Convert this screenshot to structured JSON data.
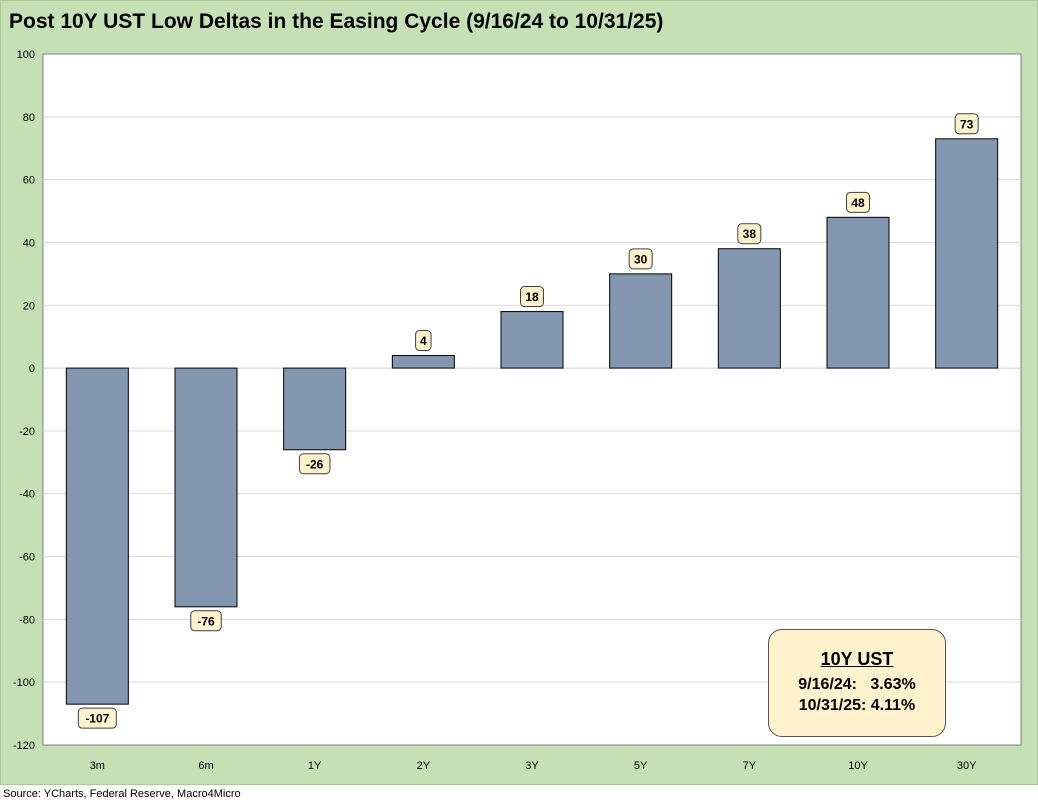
{
  "title": "Post 10Y UST Low Deltas in the Easing Cycle (9/16/24 to 10/31/25)",
  "source": "Source: YCharts, Federal Reserve, Macro4Micro",
  "colors": {
    "bar": "#8497b0",
    "bar_border": "#000000",
    "background": "#c5e0b4",
    "plot": "#ffffff",
    "grid": "#d9d9d9",
    "label_bg": "#fff2cc"
  },
  "chart_data": {
    "type": "bar",
    "title": "Post 10Y UST Low Deltas in the Easing Cycle (9/16/24 to 10/31/25)",
    "categories": [
      "3m",
      "6m",
      "1Y",
      "2Y",
      "3Y",
      "5Y",
      "7Y",
      "10Y",
      "30Y"
    ],
    "values": [
      -107,
      -76,
      -26,
      4,
      18,
      30,
      38,
      48,
      73
    ],
    "data_labels": [
      "-107",
      "-76",
      "-26",
      "4",
      "18",
      "30",
      "38",
      "48",
      "73"
    ],
    "xlabel": "",
    "ylabel": "",
    "ylim": [
      -120,
      100
    ],
    "yticks": [
      100,
      80,
      60,
      40,
      20,
      0,
      -20,
      -40,
      -60,
      -80,
      -100,
      -120
    ],
    "grid": true,
    "legend": "none"
  },
  "info_box": {
    "title": "10Y UST",
    "row1": "9/16/24:   3.63%",
    "row2": "10/31/25: 4.11%"
  }
}
